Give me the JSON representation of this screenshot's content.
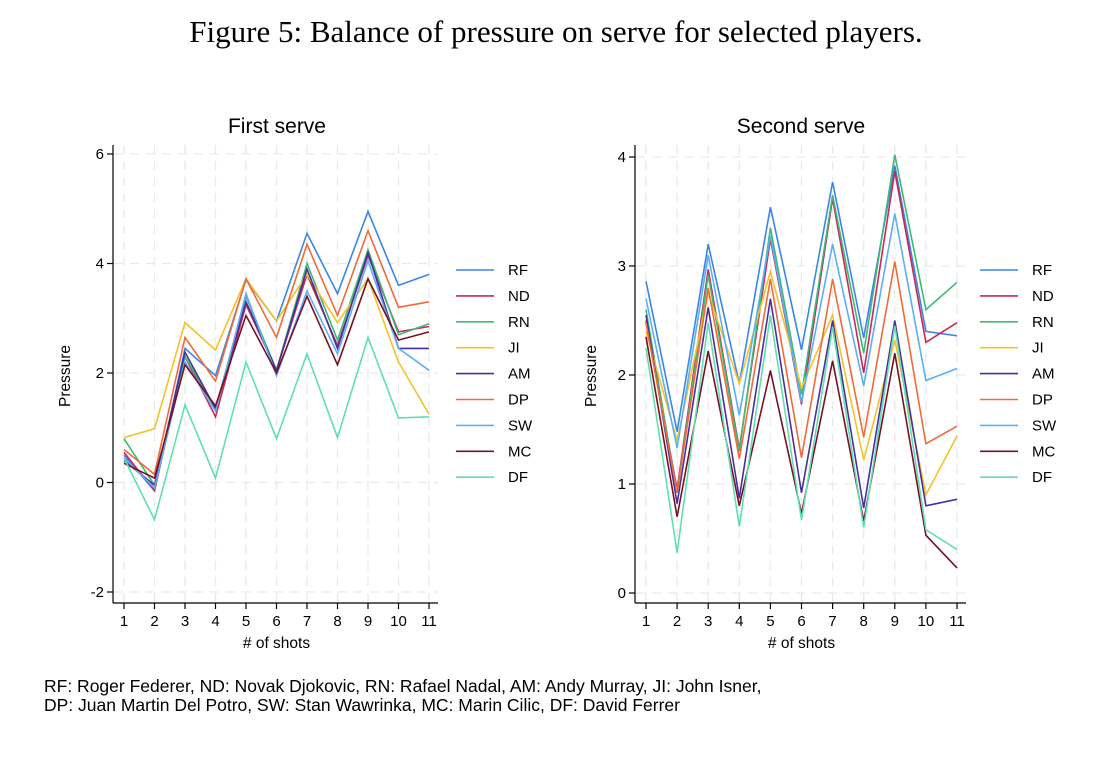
{
  "figure_title": "Figure 5: Balance of pressure on serve for selected players.",
  "caption": {
    "line1": "RF: Roger Federer, ND: Novak Djokovic, RN: Rafael Nadal, AM: Andy Murray, JI: John Isner,",
    "line2": "DP: Juan Martin Del Potro, SW: Stan Wawrinka, MC: Marin Cilic, DF: David Ferrer"
  },
  "chart_data": [
    {
      "type": "line",
      "title": "First serve",
      "xlabel": "# of shots",
      "ylabel": "Pressure",
      "x": [
        1,
        2,
        3,
        4,
        5,
        6,
        7,
        8,
        9,
        10,
        11
      ],
      "xticks": [
        "1",
        "2",
        "3",
        "4",
        "5",
        "6",
        "7",
        "8",
        "9",
        "10",
        "11"
      ],
      "ylim": [
        -2.6,
        6.2
      ],
      "yticks": [
        -2,
        0,
        2,
        4,
        6
      ],
      "ytick_labels": [
        "-2",
        "0",
        "2",
        "4",
        "6"
      ],
      "grid": true,
      "legend_position": "right",
      "series": [
        {
          "name": "RF",
          "color": "#3a86e8",
          "values": [
            0.5,
            -0.15,
            2.45,
            1.95,
            3.7,
            2.95,
            4.55,
            3.45,
            4.95,
            3.6,
            3.8
          ]
        },
        {
          "name": "ND",
          "color": "#c8285a",
          "values": [
            0.55,
            -0.15,
            2.3,
            1.2,
            3.25,
            2.05,
            3.8,
            2.5,
            4.15,
            2.75,
            2.85
          ]
        },
        {
          "name": "RN",
          "color": "#3dba74",
          "values": [
            0.8,
            -0.05,
            2.3,
            1.35,
            3.4,
            2.05,
            4.0,
            2.6,
            4.25,
            2.7,
            2.9
          ]
        },
        {
          "name": "JI",
          "color": "#f5c22b",
          "values": [
            0.82,
            0.98,
            2.92,
            2.42,
            3.72,
            2.95,
            3.8,
            2.92,
            3.72,
            2.2,
            1.25
          ]
        },
        {
          "name": "AM",
          "color": "#4a2f9e",
          "values": [
            0.4,
            -0.05,
            2.38,
            1.35,
            3.3,
            2.05,
            3.9,
            2.45,
            4.2,
            2.45,
            2.45
          ]
        },
        {
          "name": "DP",
          "color": "#f06a3a",
          "values": [
            0.6,
            0.15,
            2.65,
            1.85,
            3.72,
            2.65,
            4.35,
            3.05,
            4.6,
            3.2,
            3.3
          ]
        },
        {
          "name": "SW",
          "color": "#5ab0f5",
          "values": [
            0.45,
            -0.1,
            2.2,
            1.3,
            3.45,
            1.95,
            3.5,
            2.35,
            4.05,
            2.45,
            2.05
          ]
        },
        {
          "name": "MC",
          "color": "#7a1024",
          "values": [
            0.35,
            0.08,
            2.15,
            1.4,
            3.05,
            2.0,
            3.4,
            2.15,
            3.72,
            2.6,
            2.75
          ]
        },
        {
          "name": "DF",
          "color": "#5fe0b0",
          "values": [
            0.45,
            -0.68,
            1.42,
            0.08,
            2.2,
            0.8,
            2.35,
            0.82,
            2.65,
            1.18,
            1.2
          ]
        }
      ]
    },
    {
      "type": "line",
      "title": "Second serve",
      "xlabel": "# of shots",
      "ylabel": "Pressure",
      "x": [
        1,
        2,
        3,
        4,
        5,
        6,
        7,
        8,
        9,
        10,
        11
      ],
      "xticks": [
        "1",
        "2",
        "3",
        "4",
        "5",
        "6",
        "7",
        "8",
        "9",
        "10",
        "11"
      ],
      "ylim": [
        -0.1,
        4.15
      ],
      "yticks": [
        0,
        1,
        2,
        3,
        4
      ],
      "ytick_labels": [
        "0",
        "1",
        "2",
        "3",
        "4"
      ],
      "grid": true,
      "legend_position": "right",
      "series": [
        {
          "name": "RF",
          "color": "#3a86e8",
          "values": [
            2.86,
            1.48,
            3.2,
            1.92,
            3.54,
            2.23,
            3.77,
            2.34,
            3.92,
            2.4,
            2.36
          ]
        },
        {
          "name": "ND",
          "color": "#c8285a",
          "values": [
            2.5,
            0.95,
            2.97,
            1.32,
            3.25,
            1.73,
            3.62,
            2.02,
            3.87,
            2.3,
            2.48
          ]
        },
        {
          "name": "RN",
          "color": "#3dba74",
          "values": [
            2.6,
            0.92,
            2.92,
            1.3,
            3.35,
            1.82,
            3.65,
            2.2,
            4.02,
            2.6,
            2.85
          ]
        },
        {
          "name": "JI",
          "color": "#f5c22b",
          "values": [
            2.4,
            1.4,
            2.75,
            1.92,
            2.95,
            1.88,
            2.55,
            1.22,
            2.32,
            0.9,
            1.44
          ]
        },
        {
          "name": "AM",
          "color": "#4a2f9e",
          "values": [
            2.55,
            0.82,
            2.62,
            0.87,
            2.7,
            0.92,
            2.5,
            0.78,
            2.5,
            0.8,
            0.86
          ]
        },
        {
          "name": "DP",
          "color": "#f06a3a",
          "values": [
            2.48,
            0.92,
            2.8,
            1.23,
            2.88,
            1.24,
            2.88,
            1.43,
            3.04,
            1.37,
            1.53
          ]
        },
        {
          "name": "SW",
          "color": "#5ab0f5",
          "values": [
            2.7,
            1.33,
            3.1,
            1.63,
            3.28,
            1.75,
            3.2,
            1.9,
            3.48,
            1.95,
            2.06
          ]
        },
        {
          "name": "MC",
          "color": "#7a1024",
          "values": [
            2.35,
            0.7,
            2.22,
            0.8,
            2.04,
            0.73,
            2.13,
            0.66,
            2.2,
            0.53,
            0.23
          ]
        },
        {
          "name": "DF",
          "color": "#5fe0b0",
          "values": [
            2.25,
            0.37,
            2.48,
            0.61,
            2.55,
            0.67,
            2.44,
            0.6,
            2.45,
            0.58,
            0.4
          ]
        }
      ]
    }
  ]
}
